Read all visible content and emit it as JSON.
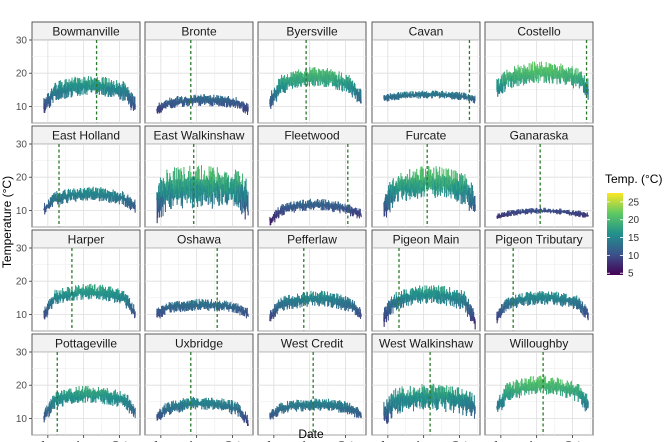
{
  "chart_data": {
    "type": "line",
    "layout": "facet-grid",
    "xlabel": "Date",
    "ylabel": "Temperature (°C)",
    "ylim": [
      5,
      30
    ],
    "yticks": [
      10,
      20,
      30
    ],
    "xlim": [
      "2019-05-05",
      "2019-11-05"
    ],
    "xticks": [
      {
        "label": "Jun",
        "date": "2019-06-01"
      },
      {
        "label": "Aug",
        "date": "2019-08-01"
      },
      {
        "label": "Oct",
        "date": "2019-10-01"
      }
    ],
    "grid": true,
    "legend": {
      "title": "Temp. (°C)",
      "position": "right",
      "ticks": [
        25,
        20,
        15,
        10,
        5
      ],
      "range": [
        4.5,
        27.5
      ],
      "colors": [
        "#440154",
        "#3b528b",
        "#21908c",
        "#5dc863",
        "#fde725"
      ]
    },
    "reference_line_color": "#2b7a2b",
    "facets": [
      {
        "name": "Bowmanville",
        "base": 14.5,
        "amp": 3.0,
        "noise": 2.5,
        "start": 10.0,
        "end": 10.0,
        "vline": "2019-08-23"
      },
      {
        "name": "Bronte",
        "base": 11.0,
        "amp": 1.5,
        "noise": 1.5,
        "start": 9.0,
        "end": 9.0,
        "vline": "2019-07-22"
      },
      {
        "name": "Byersville",
        "base": 16.5,
        "amp": 4.0,
        "noise": 2.5,
        "start": 11.0,
        "end": 12.0,
        "vline": "2019-07-26"
      },
      {
        "name": "Cavan",
        "base": 13.0,
        "amp": 1.0,
        "noise": 1.0,
        "start": 12.5,
        "end": 12.0,
        "vline": "2019-10-18"
      },
      {
        "name": "Costello",
        "base": 18.5,
        "amp": 3.0,
        "noise": 2.8,
        "start": 15.0,
        "end": 15.0,
        "vline": "2019-10-25"
      },
      {
        "name": "East Holland",
        "base": 13.5,
        "amp": 2.5,
        "noise": 1.8,
        "start": 10.0,
        "end": 11.0,
        "vline": "2019-06-20"
      },
      {
        "name": "East Walkinshaw",
        "base": 16.0,
        "amp": 2.0,
        "noise": 5.5,
        "start": 12.0,
        "end": 13.0,
        "vline": "2019-07-27"
      },
      {
        "name": "Fleetwood",
        "base": 10.0,
        "amp": 3.0,
        "noise": 1.5,
        "start": 6.5,
        "end": 9.0,
        "vline": "2019-10-05"
      },
      {
        "name": "Furcate",
        "base": 16.5,
        "amp": 3.5,
        "noise": 4.0,
        "start": 11.0,
        "end": 12.0,
        "vline": "2019-08-07"
      },
      {
        "name": "Ganaraska",
        "base": 9.0,
        "amp": 1.5,
        "noise": 0.8,
        "start": 8.0,
        "end": 8.5,
        "vline": "2019-08-07"
      },
      {
        "name": "Harper",
        "base": 15.0,
        "amp": 3.0,
        "noise": 2.0,
        "start": 9.5,
        "end": 10.0,
        "vline": "2019-07-12"
      },
      {
        "name": "Oshawa",
        "base": 12.0,
        "amp": 1.5,
        "noise": 1.5,
        "start": 10.0,
        "end": 10.0,
        "vline": "2019-09-05"
      },
      {
        "name": "Pefferlaw",
        "base": 13.0,
        "amp": 3.0,
        "noise": 2.0,
        "start": 9.0,
        "end": 10.0,
        "vline": "2019-07-22"
      },
      {
        "name": "Pigeon Main",
        "base": 14.0,
        "amp": 3.5,
        "noise": 2.5,
        "start": 9.0,
        "end": 8.0,
        "vline": "2019-06-20"
      },
      {
        "name": "Pigeon Tributary",
        "base": 13.5,
        "amp": 2.5,
        "noise": 1.8,
        "start": 9.0,
        "end": 10.0,
        "vline": "2019-06-22"
      },
      {
        "name": "Pottageville",
        "base": 15.5,
        "amp": 3.0,
        "noise": 2.2,
        "start": 10.5,
        "end": 12.0,
        "vline": "2019-06-17"
      },
      {
        "name": "Uxbridge",
        "base": 13.0,
        "amp": 2.5,
        "noise": 1.8,
        "start": 10.5,
        "end": 9.0,
        "vline": "2019-07-22"
      },
      {
        "name": "West Credit",
        "base": 13.0,
        "amp": 2.0,
        "noise": 1.6,
        "start": 10.5,
        "end": 11.0,
        "vline": "2019-08-07"
      },
      {
        "name": "West Walkinshaw",
        "base": 15.0,
        "amp": 2.5,
        "noise": 3.5,
        "start": 11.0,
        "end": 13.0,
        "vline": "2019-08-12"
      },
      {
        "name": "Willoughby",
        "base": 18.0,
        "amp": 3.5,
        "noise": 2.5,
        "start": 13.0,
        "end": 14.0,
        "vline": "2019-08-12"
      }
    ]
  }
}
